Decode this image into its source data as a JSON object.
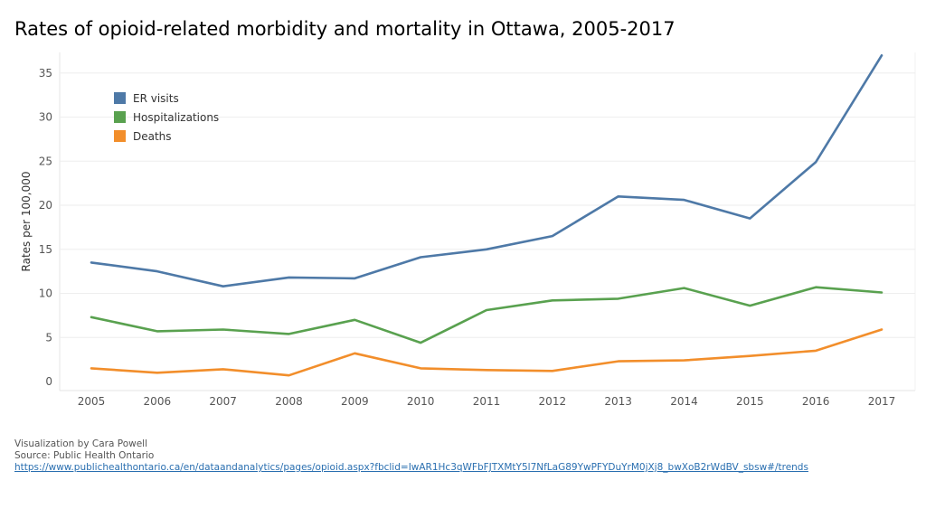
{
  "chart_data": {
    "type": "line",
    "title": "Rates of opioid-related morbidity and mortality in Ottawa, 2005-2017",
    "ylabel": "Rates per 100,000",
    "xlabel": "",
    "x": [
      "2005",
      "2006",
      "2007",
      "2008",
      "2009",
      "2010",
      "2011",
      "2012",
      "2013",
      "2014",
      "2015",
      "2016",
      "2017"
    ],
    "ylim": [
      -1,
      39
    ],
    "yticks": [
      0,
      5,
      10,
      15,
      20,
      25,
      30,
      35
    ],
    "grid": true,
    "legend_position": "top-left",
    "series": [
      {
        "name": "ER visits",
        "color": "#4e79a7",
        "values": [
          13.5,
          12.5,
          10.8,
          11.8,
          11.7,
          14.1,
          15.0,
          16.5,
          21.0,
          20.6,
          18.5,
          24.9,
          37.0
        ]
      },
      {
        "name": "Hospitalizations",
        "color": "#59a14f",
        "values": [
          7.3,
          5.7,
          5.9,
          5.4,
          7.0,
          4.4,
          8.1,
          9.2,
          9.4,
          10.6,
          8.6,
          10.7,
          10.1
        ]
      },
      {
        "name": "Deaths",
        "color": "#f28e2b",
        "values": [
          1.5,
          1.0,
          1.4,
          0.7,
          3.2,
          1.5,
          1.3,
          1.2,
          2.3,
          2.4,
          2.9,
          3.5,
          5.9
        ]
      }
    ]
  },
  "footer": {
    "credit": "Visualization by Cara Powell",
    "source": "Source: Public Health Ontario",
    "link": "https://www.publichealthontario.ca/en/dataandanalytics/pages/opioid.aspx?fbclid=IwAR1Hc3qWFbFJTXMtY5l7NfLaG89YwPFYDuYrM0jXj8_bwXoB2rWdBV_sbsw#/trends"
  }
}
